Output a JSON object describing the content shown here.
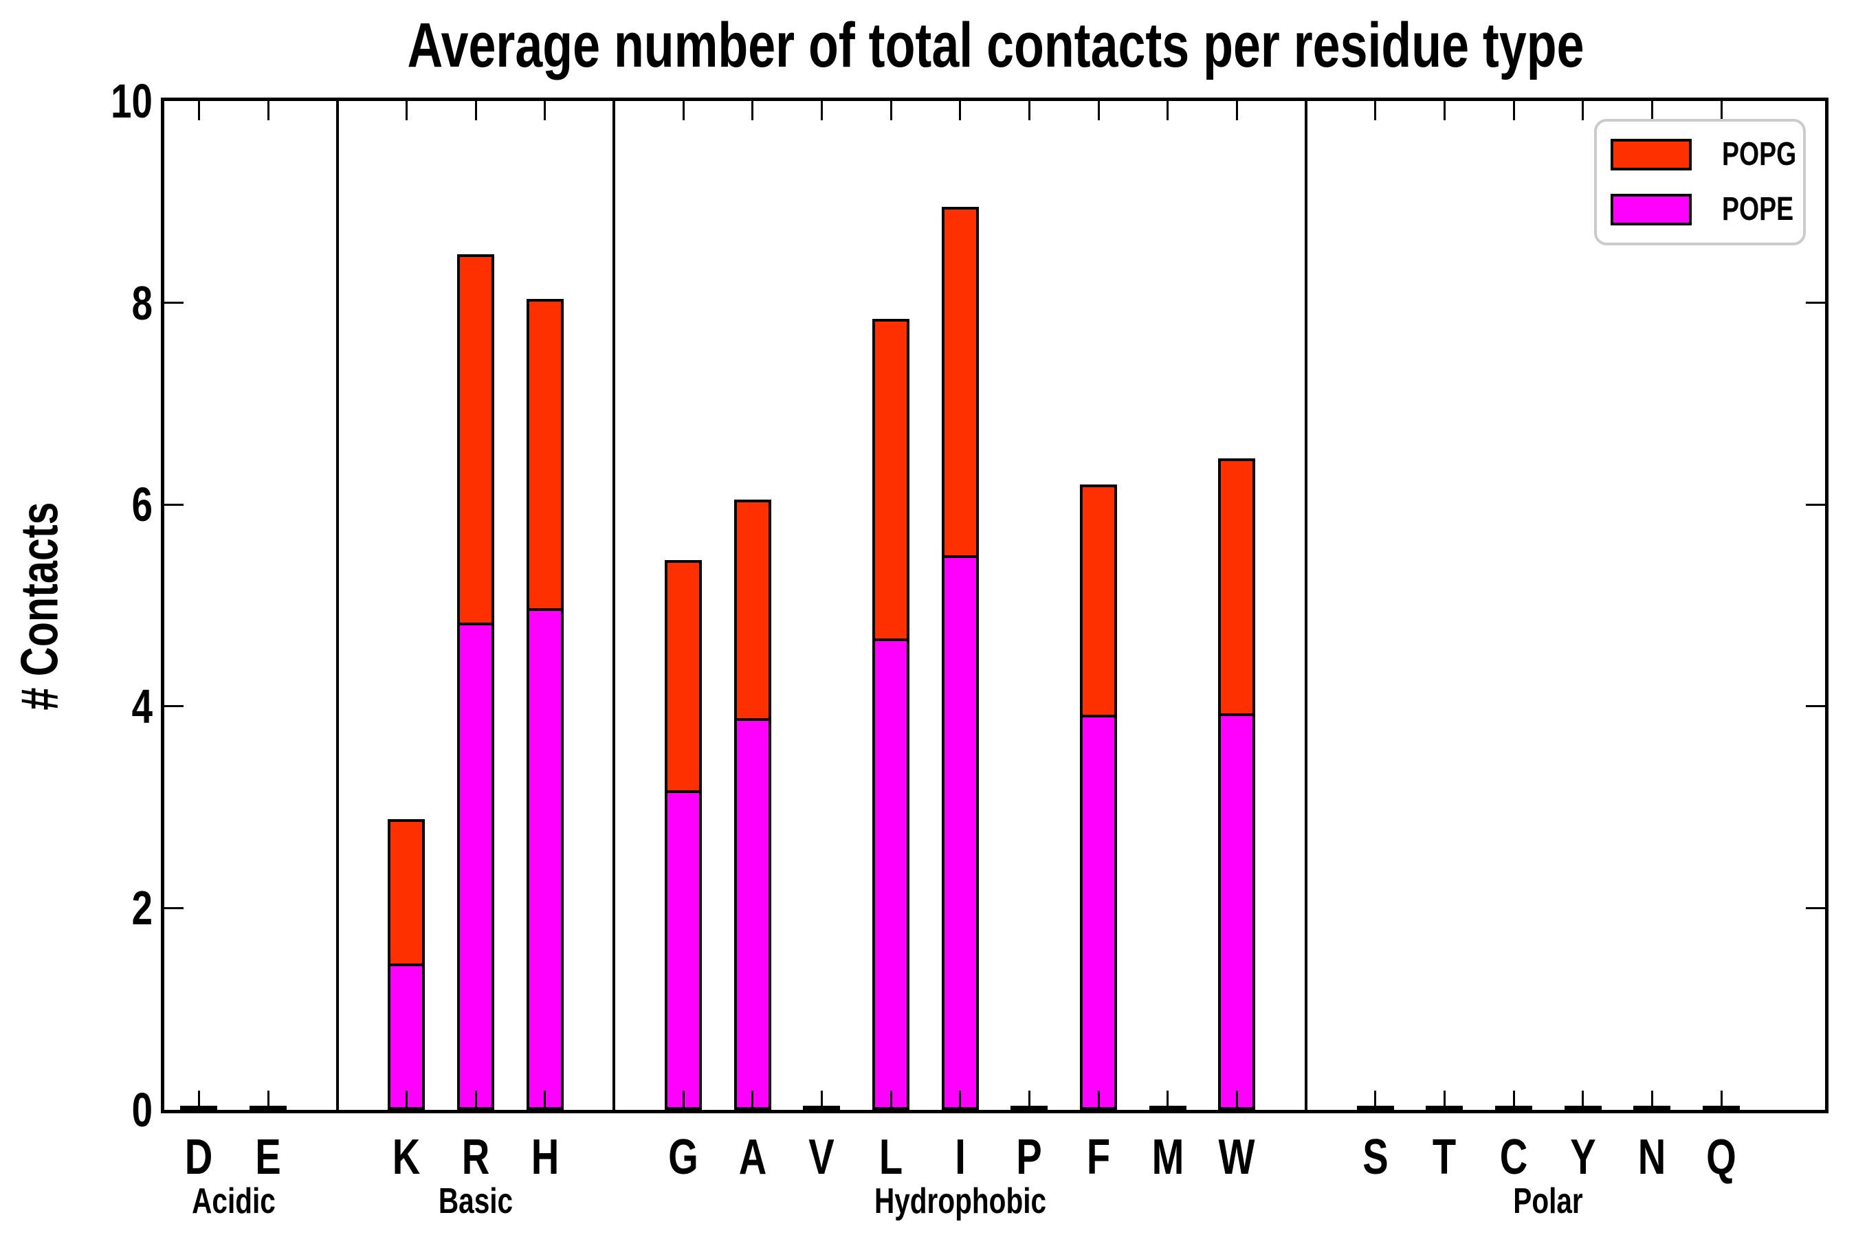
{
  "title": "Average number of total contacts per residue type",
  "ylabel": "# Contacts",
  "legend": {
    "items": [
      {
        "label": "POPG",
        "color": "#ff3000"
      },
      {
        "label": "POPE",
        "color": "#ff00ff"
      }
    ]
  },
  "chart_data": {
    "type": "bar",
    "stacked": true,
    "title": "Average number of total contacts per residue type",
    "xlabel": "",
    "ylabel": "# Contacts",
    "ylim": [
      0,
      10
    ],
    "yticks": [
      0,
      2,
      4,
      6,
      8,
      10
    ],
    "grid": false,
    "legend_position": "upper right",
    "categories": [
      "D",
      "E",
      "K",
      "R",
      "H",
      "G",
      "A",
      "V",
      "L",
      "I",
      "P",
      "F",
      "M",
      "W",
      "S",
      "T",
      "C",
      "Y",
      "N",
      "Q"
    ],
    "groups": [
      {
        "name": "Acidic",
        "residues": [
          "D",
          "E"
        ]
      },
      {
        "name": "Basic",
        "residues": [
          "K",
          "R",
          "H"
        ]
      },
      {
        "name": "Hydrophobic",
        "residues": [
          "G",
          "A",
          "V",
          "L",
          "I",
          "P",
          "F",
          "M",
          "W"
        ]
      },
      {
        "name": "Polar",
        "residues": [
          "S",
          "T",
          "C",
          "Y",
          "N",
          "Q"
        ]
      }
    ],
    "series": [
      {
        "name": "POPE",
        "color": "#ff00ff",
        "values": [
          0.02,
          0.02,
          1.45,
          4.83,
          4.97,
          3.17,
          3.88,
          0.02,
          4.67,
          5.5,
          0.02,
          3.92,
          0.02,
          3.93,
          0.02,
          0.02,
          0.02,
          0.02,
          0.02,
          0.02
        ]
      },
      {
        "name": "POPG",
        "color": "#ff3000",
        "values": [
          0.01,
          0.01,
          1.43,
          3.65,
          3.07,
          2.28,
          2.17,
          0.01,
          3.17,
          3.45,
          0.01,
          2.28,
          0.01,
          2.53,
          0.01,
          0.01,
          0.01,
          0.01,
          0.01,
          0.01
        ]
      }
    ],
    "totals": {
      "K": 2.88,
      "R": 8.48,
      "H": 8.04,
      "G": 5.45,
      "A": 6.05,
      "L": 7.84,
      "I": 8.95,
      "F": 6.2,
      "W": 6.46
    }
  }
}
